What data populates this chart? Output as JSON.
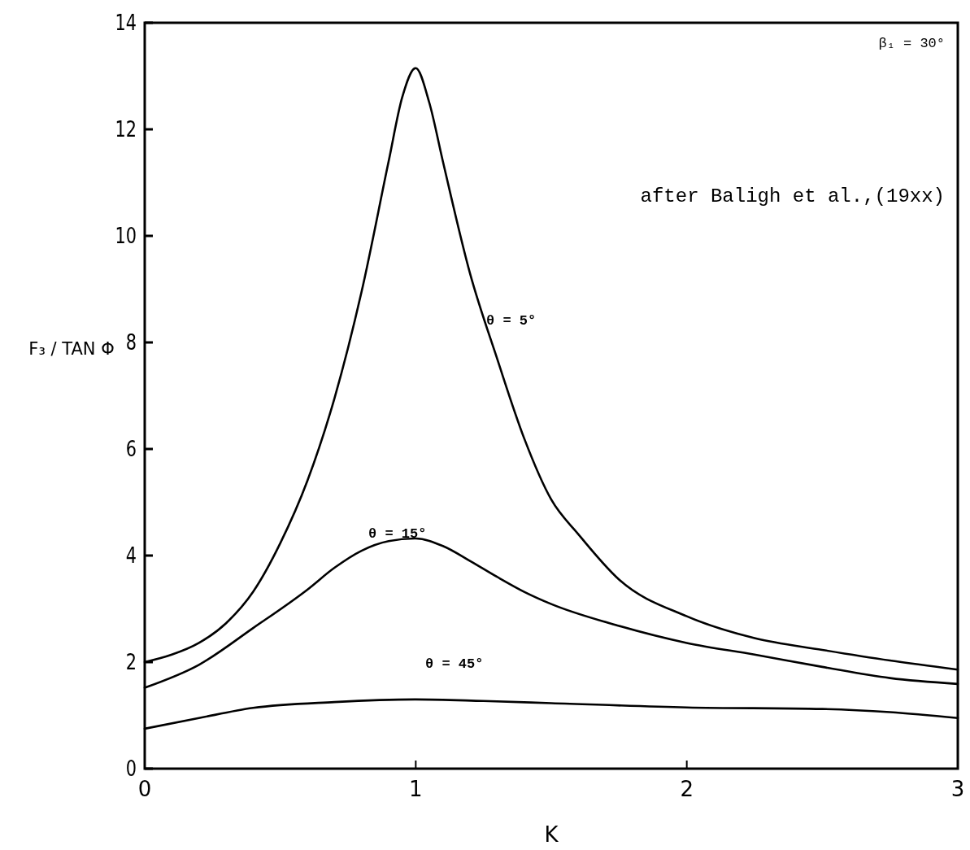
{
  "chart_data": {
    "type": "line",
    "xlabel": "K",
    "ylabel": "F₃ / TAN Φ",
    "xlim": [
      0,
      3
    ],
    "ylim": [
      0,
      14
    ],
    "xticks": [
      0,
      1,
      2,
      3
    ],
    "yticks": [
      0,
      2,
      4,
      6,
      8,
      10,
      12,
      14
    ],
    "grid": false,
    "legend": false,
    "marker": "none",
    "line_style": "solid",
    "series": [
      {
        "name": "θ = 5°",
        "color": "#000000",
        "x": [
          0,
          0.1,
          0.2,
          0.3,
          0.4,
          0.5,
          0.6,
          0.7,
          0.8,
          0.9,
          0.95,
          1.0,
          1.05,
          1.1,
          1.2,
          1.3,
          1.4,
          1.5,
          1.6,
          1.75,
          2.0,
          2.25,
          2.5,
          2.75,
          3.0
        ],
        "values": [
          2.0,
          2.14,
          2.36,
          2.73,
          3.32,
          4.23,
          5.4,
          6.95,
          8.95,
          11.4,
          12.6,
          13.15,
          12.5,
          11.4,
          9.3,
          7.7,
          6.2,
          5.05,
          4.4,
          3.55,
          2.86,
          2.45,
          2.23,
          2.03,
          1.86
        ]
      },
      {
        "name": "θ = 15°",
        "color": "#000000",
        "x": [
          0,
          0.2,
          0.4,
          0.6,
          0.7,
          0.8,
          0.9,
          1.0,
          1.1,
          1.2,
          1.3,
          1.4,
          1.5,
          1.75,
          2.0,
          2.25,
          2.5,
          2.75,
          3.0
        ],
        "values": [
          1.52,
          1.95,
          2.64,
          3.36,
          3.77,
          4.09,
          4.27,
          4.32,
          4.18,
          3.9,
          3.6,
          3.32,
          3.09,
          2.68,
          2.36,
          2.14,
          1.91,
          1.7,
          1.59
        ]
      },
      {
        "name": "θ = 45°",
        "color": "#000000",
        "x": [
          0,
          0.2,
          0.4,
          0.7,
          1.0,
          1.25,
          1.5,
          2.0,
          2.5,
          2.75,
          3.0
        ],
        "values": [
          0.75,
          0.95,
          1.14,
          1.25,
          1.3,
          1.27,
          1.23,
          1.15,
          1.12,
          1.06,
          0.95
        ]
      }
    ],
    "annotations": [
      "β₁ = 30°",
      "after  Baligh et al.,(19xx)"
    ]
  }
}
